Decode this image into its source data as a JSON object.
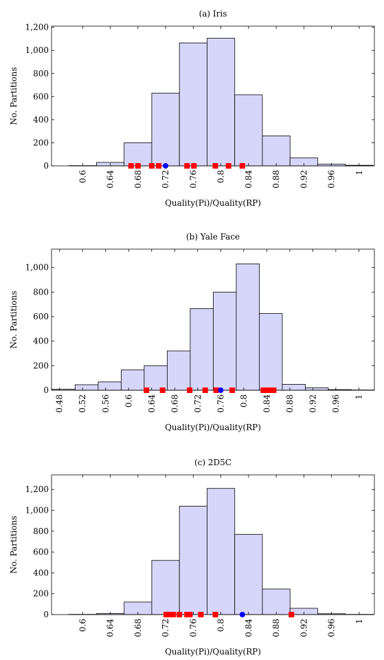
{
  "chart_data": [
    {
      "type": "histogram",
      "title": "(a) Iris",
      "xlabel": "Quality(Pi)/Quality(RP)",
      "ylabel": "No. Partitions",
      "bins": [
        0.58,
        0.62,
        0.66,
        0.7,
        0.74,
        0.78,
        0.82,
        0.86,
        0.9,
        0.94,
        0.98,
        1.02
      ],
      "values": [
        2,
        30,
        200,
        630,
        1065,
        1105,
        615,
        260,
        70,
        15,
        5
      ],
      "color": "#d6d6fa",
      "points": [
        {
          "color": "#ff0000",
          "marker": "square",
          "x": [
            0.67,
            0.68,
            0.7,
            0.71,
            0.751,
            0.761,
            0.792,
            0.811,
            0.831
          ],
          "y": [
            0,
            0,
            0,
            0,
            0,
            0,
            0,
            0,
            0
          ]
        },
        {
          "color": "#0000ff",
          "marker": "circle",
          "x": [
            0.72
          ],
          "y": [
            0
          ]
        }
      ],
      "xlim": [
        0.555,
        1.022
      ],
      "ylim": [
        0,
        1210
      ],
      "xticks": [
        0.6,
        0.64,
        0.68,
        0.72,
        0.76,
        0.8,
        0.84,
        0.88,
        0.92,
        0.96,
        1
      ],
      "yticks": [
        0,
        200,
        400,
        600,
        800,
        {
          "value": 1000,
          "label": "1,000"
        },
        {
          "value": 1200,
          "label": "1,200"
        }
      ]
    },
    {
      "type": "histogram",
      "title": "(b) Yale Face",
      "xlabel": "Quality(Pi)/Quality(RP)",
      "ylabel": "No. Partitions",
      "bins": [
        0.467,
        0.507,
        0.547,
        0.587,
        0.627,
        0.667,
        0.707,
        0.747,
        0.787,
        0.827,
        0.867,
        0.907,
        0.947,
        0.987,
        1.027
      ],
      "values": [
        8,
        45,
        68,
        165,
        200,
        320,
        665,
        800,
        1030,
        625,
        48,
        20,
        5,
        2
      ],
      "color": "#d6d6fa",
      "points": [
        {
          "color": "#ff0000",
          "marker": "square",
          "x": [
            0.631,
            0.659,
            0.706,
            0.733,
            0.752,
            0.78,
            0.834,
            0.84,
            0.846,
            0.852
          ],
          "y": [
            0,
            0,
            0,
            0,
            0,
            0,
            0,
            0,
            0,
            0
          ]
        },
        {
          "color": "#0000ff",
          "marker": "circle",
          "x": [
            0.76
          ],
          "y": [
            0
          ]
        }
      ],
      "xlim": [
        0.466,
        1.027
      ],
      "ylim": [
        0,
        1150
      ],
      "xticks": [
        0.48,
        0.52,
        0.56,
        0.6,
        0.64,
        0.68,
        0.72,
        0.76,
        0.8,
        0.84,
        0.88,
        0.92,
        0.96,
        1
      ],
      "yticks": [
        0,
        200,
        400,
        600,
        800,
        {
          "value": 1000,
          "label": "1,000"
        }
      ]
    },
    {
      "type": "histogram",
      "title": "(c) 2D5C",
      "xlabel": "Quality(Pi)/Quality(RP)",
      "ylabel": "No. Partitions",
      "bins": [
        0.58,
        0.62,
        0.66,
        0.7,
        0.74,
        0.78,
        0.82,
        0.86,
        0.9,
        0.94,
        0.98,
        1.02
      ],
      "values": [
        2,
        10,
        120,
        520,
        1040,
        1210,
        770,
        245,
        60,
        8,
        2
      ],
      "color": "#d6d6fa",
      "points": [
        {
          "color": "#ff0000",
          "marker": "square",
          "x": [
            0.721,
            0.726,
            0.731,
            0.74,
            0.751,
            0.755,
            0.771,
            0.792,
            0.902
          ],
          "y": [
            0,
            0,
            0,
            0,
            0,
            0,
            0,
            0,
            0
          ]
        },
        {
          "color": "#0000ff",
          "marker": "circle",
          "x": [
            0.831
          ],
          "y": [
            0
          ]
        }
      ],
      "xlim": [
        0.555,
        1.022
      ],
      "ylim": [
        0,
        1340
      ],
      "xticks": [
        0.6,
        0.64,
        0.68,
        0.72,
        0.76,
        0.8,
        0.84,
        0.88,
        0.92,
        0.96,
        1
      ],
      "yticks": [
        0,
        200,
        400,
        600,
        800,
        {
          "value": 1000,
          "label": "1,000"
        },
        {
          "value": 1200,
          "label": "1,200"
        }
      ]
    }
  ]
}
